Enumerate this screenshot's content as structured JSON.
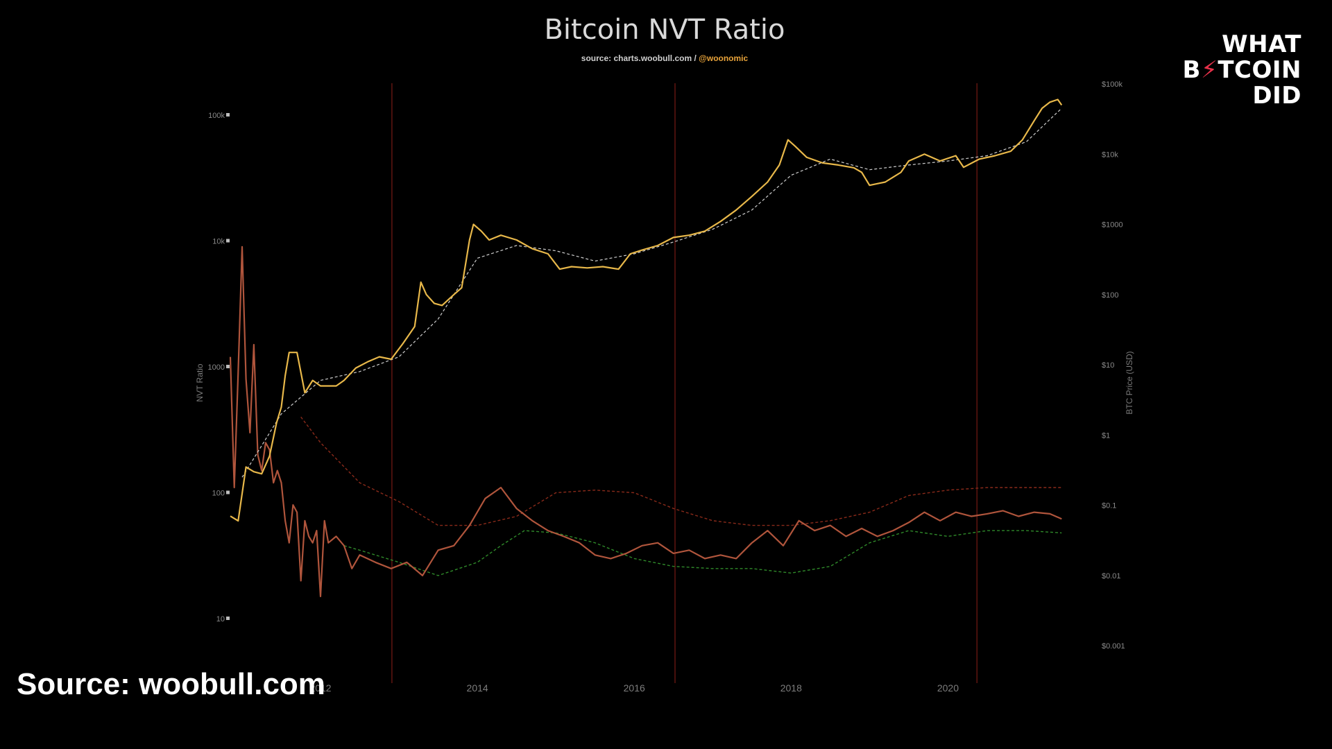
{
  "chart_data": {
    "type": "line",
    "title": "Bitcoin NVT Ratio",
    "subtitle_source": "source: charts.woobull.com /",
    "subtitle_handle": "@woonomic",
    "ylabel_left": "NVT Ratio",
    "ylabel_right": "BTC Price (USD)",
    "y_left_scale": "log",
    "y_right_scale": "log",
    "y_left_ticks": [
      "10",
      "100",
      "1000",
      "10k",
      "100k"
    ],
    "y_left_tick_values": [
      10,
      100,
      1000,
      10000,
      100000
    ],
    "y_right_ticks": [
      "$0.001",
      "$0.01",
      "$0.1",
      "$1",
      "$10",
      "$100",
      "$1000",
      "$10k",
      "$100k"
    ],
    "y_right_tick_values": [
      0.001,
      0.01,
      0.1,
      1,
      10,
      100,
      1000,
      10000,
      100000
    ],
    "x_ticks": [
      "2012",
      "2014",
      "2016",
      "2018",
      "2020"
    ],
    "x_tick_values": [
      2012,
      2014,
      2016,
      2018,
      2020
    ],
    "xlim": [
      2010.85,
      2021.5
    ],
    "halving_lines": [
      2012.91,
      2016.52,
      2020.37
    ],
    "colors": {
      "price": "#e8b84a",
      "price_ma": "#cfcfcf",
      "nvt": "#b0553c",
      "upper_band": "#8a2a1a",
      "lower_band": "#2f8a2a",
      "halving": "#5a1410"
    },
    "series": [
      {
        "key": "price",
        "axis": "right",
        "x": [
          2010.85,
          2010.95,
          2011.05,
          2011.15,
          2011.25,
          2011.35,
          2011.44,
          2011.5,
          2011.55,
          2011.6,
          2011.7,
          2011.8,
          2011.9,
          2012.0,
          2012.1,
          2012.2,
          2012.3,
          2012.45,
          2012.6,
          2012.75,
          2012.9,
          2013.05,
          2013.2,
          2013.28,
          2013.35,
          2013.45,
          2013.55,
          2013.7,
          2013.8,
          2013.9,
          2013.95,
          2014.05,
          2014.15,
          2014.3,
          2014.5,
          2014.7,
          2014.9,
          2015.05,
          2015.2,
          2015.4,
          2015.6,
          2015.8,
          2015.95,
          2016.1,
          2016.3,
          2016.5,
          2016.7,
          2016.9,
          2017.1,
          2017.3,
          2017.5,
          2017.7,
          2017.85,
          2017.96,
          2018.05,
          2018.2,
          2018.4,
          2018.6,
          2018.8,
          2018.9,
          2019.0,
          2019.2,
          2019.4,
          2019.5,
          2019.7,
          2019.9,
          2020.1,
          2020.2,
          2020.4,
          2020.6,
          2020.8,
          2020.95,
          2021.1,
          2021.2,
          2021.3,
          2021.4,
          2021.45
        ],
        "y": [
          0.07,
          0.06,
          0.35,
          0.3,
          0.28,
          0.5,
          1.5,
          2.5,
          7,
          15,
          15,
          4,
          6,
          5,
          5,
          5,
          6,
          9,
          11,
          13,
          12,
          20,
          35,
          150,
          100,
          75,
          70,
          100,
          125,
          600,
          1000,
          800,
          600,
          700,
          600,
          450,
          380,
          230,
          250,
          240,
          250,
          230,
          380,
          430,
          500,
          650,
          700,
          800,
          1100,
          1600,
          2500,
          4000,
          7000,
          16000,
          13000,
          9000,
          7500,
          7000,
          6400,
          5500,
          3600,
          4000,
          5500,
          8000,
          10000,
          8000,
          9500,
          6500,
          8500,
          9500,
          11000,
          16000,
          30000,
          45000,
          55000,
          60000,
          50000
        ]
      },
      {
        "key": "price_ma",
        "axis": "right",
        "style": "dashed",
        "x": [
          2011.0,
          2011.5,
          2012.0,
          2012.5,
          2013.0,
          2013.5,
          2014.0,
          2014.5,
          2015.0,
          2015.5,
          2016.0,
          2016.5,
          2017.0,
          2017.5,
          2018.0,
          2018.5,
          2019.0,
          2019.5,
          2020.0,
          2020.5,
          2021.0,
          2021.45
        ],
        "y": [
          0.25,
          2,
          6,
          8,
          13,
          45,
          330,
          500,
          420,
          300,
          380,
          560,
          850,
          1600,
          5000,
          8500,
          6000,
          7000,
          8000,
          9500,
          15000,
          45000
        ]
      },
      {
        "key": "nvt",
        "axis": "left",
        "x": [
          2010.85,
          2010.9,
          2010.95,
          2011.0,
          2011.05,
          2011.1,
          2011.15,
          2011.2,
          2011.25,
          2011.3,
          2011.35,
          2011.4,
          2011.45,
          2011.5,
          2011.55,
          2011.6,
          2011.65,
          2011.7,
          2011.75,
          2011.8,
          2011.85,
          2011.9,
          2011.95,
          2012.0,
          2012.05,
          2012.1,
          2012.2,
          2012.3,
          2012.4,
          2012.5,
          2012.7,
          2012.9,
          2013.1,
          2013.3,
          2013.5,
          2013.7,
          2013.9,
          2014.1,
          2014.3,
          2014.5,
          2014.7,
          2014.9,
          2015.1,
          2015.3,
          2015.5,
          2015.7,
          2015.9,
          2016.1,
          2016.3,
          2016.5,
          2016.7,
          2016.9,
          2017.1,
          2017.3,
          2017.5,
          2017.7,
          2017.9,
          2018.1,
          2018.3,
          2018.5,
          2018.7,
          2018.9,
          2019.1,
          2019.3,
          2019.5,
          2019.7,
          2019.9,
          2020.1,
          2020.3,
          2020.5,
          2020.7,
          2020.9,
          2021.1,
          2021.3,
          2021.45
        ],
        "y": [
          1200,
          110,
          900,
          9000,
          800,
          300,
          1500,
          200,
          150,
          250,
          220,
          120,
          150,
          120,
          60,
          40,
          80,
          70,
          20,
          60,
          45,
          40,
          50,
          15,
          60,
          40,
          45,
          38,
          25,
          32,
          28,
          25,
          28,
          22,
          35,
          38,
          55,
          90,
          110,
          75,
          60,
          50,
          45,
          40,
          32,
          30,
          33,
          38,
          40,
          33,
          35,
          30,
          32,
          30,
          40,
          50,
          38,
          60,
          50,
          55,
          45,
          52,
          45,
          50,
          58,
          70,
          60,
          70,
          65,
          68,
          72,
          65,
          70,
          68,
          62
        ]
      },
      {
        "key": "upper_band",
        "axis": "left",
        "style": "dashed",
        "x": [
          2011.75,
          2012.0,
          2012.5,
          2013.0,
          2013.5,
          2014.0,
          2014.5,
          2015.0,
          2015.5,
          2016.0,
          2016.5,
          2017.0,
          2017.5,
          2018.0,
          2018.5,
          2019.0,
          2019.5,
          2020.0,
          2020.5,
          2021.0,
          2021.45
        ],
        "y": [
          400,
          250,
          120,
          85,
          55,
          55,
          65,
          100,
          105,
          100,
          75,
          60,
          55,
          55,
          60,
          70,
          95,
          105,
          110,
          110,
          110
        ]
      },
      {
        "key": "lower_band",
        "axis": "left",
        "style": "dashed",
        "x": [
          2012.3,
          2012.5,
          2013.0,
          2013.5,
          2014.0,
          2014.3,
          2014.6,
          2015.0,
          2015.5,
          2016.0,
          2016.5,
          2017.0,
          2017.5,
          2018.0,
          2018.5,
          2019.0,
          2019.5,
          2020.0,
          2020.5,
          2021.0,
          2021.45
        ],
        "y": [
          38,
          35,
          28,
          22,
          28,
          38,
          50,
          48,
          40,
          30,
          26,
          25,
          25,
          23,
          26,
          40,
          50,
          45,
          50,
          50,
          48
        ]
      }
    ]
  },
  "source_text": "Source: woobull.com",
  "logo": {
    "line1": "WHAT",
    "line2_pre": "B",
    "line2_bolt": "⚡",
    "line2_post": "TCOIN",
    "line3": "DID"
  }
}
